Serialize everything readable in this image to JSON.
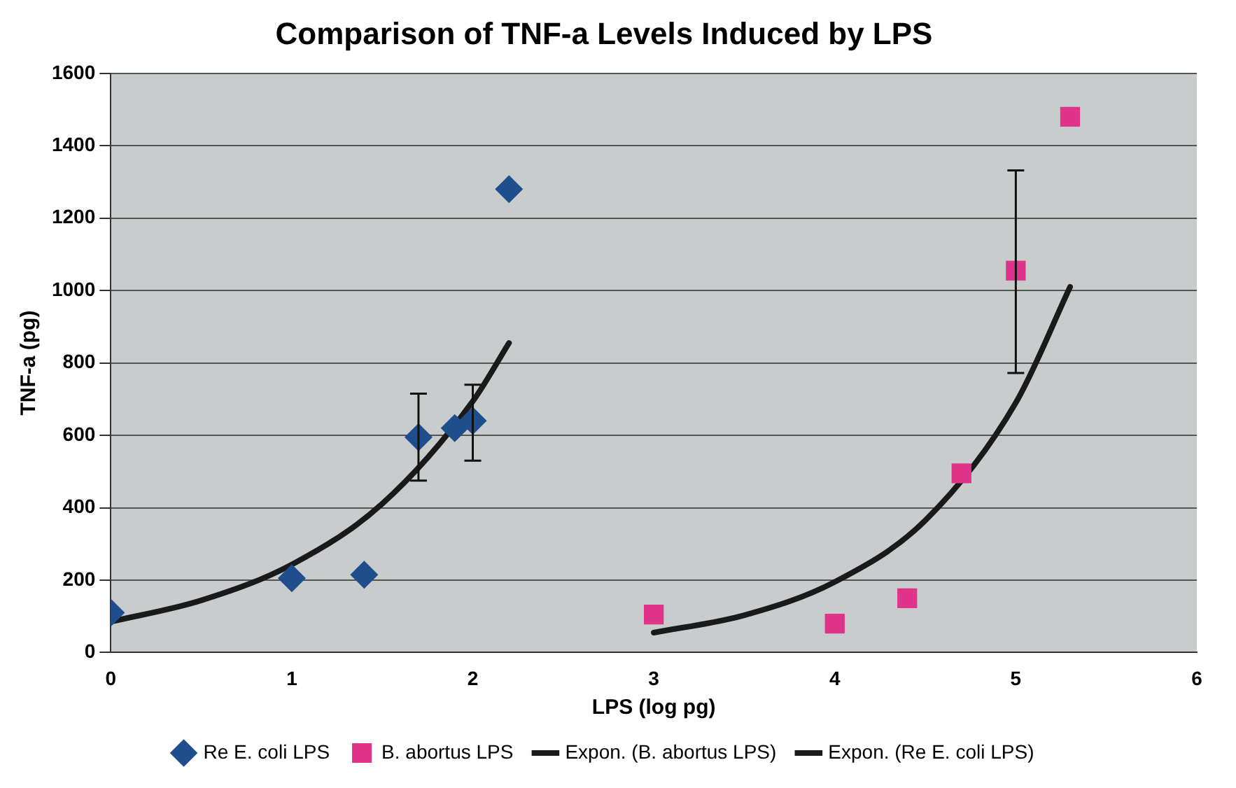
{
  "chart_data": {
    "type": "scatter",
    "title": "Comparison of TNF-a Levels Induced by LPS",
    "xlabel": "LPS (log pg)",
    "ylabel": "TNF-a (pg)",
    "xlim": [
      0,
      6
    ],
    "xticks": [
      0,
      1,
      2,
      3,
      4,
      5,
      6
    ],
    "ylim": [
      0,
      1600
    ],
    "yticks": [
      0,
      200,
      400,
      600,
      800,
      1000,
      1200,
      1400,
      1600
    ],
    "grid": "y",
    "legend": "bottom",
    "series": [
      {
        "name": "Re E. coli LPS",
        "type": "scatter",
        "marker": "diamond",
        "color": "#1f4e8c",
        "x": [
          0,
          1,
          1.4,
          1.7,
          1.9,
          2.0,
          2.2
        ],
        "values": [
          110,
          205,
          215,
          595,
          620,
          640,
          1280
        ],
        "errors": [
          null,
          null,
          null,
          [
            475,
            715
          ],
          null,
          [
            530,
            740
          ],
          null
        ]
      },
      {
        "name": "B. abortus LPS",
        "type": "scatter",
        "marker": "square",
        "color": "#e0338a",
        "x": [
          3,
          4,
          4.4,
          4.7,
          5,
          5.3
        ],
        "values": [
          105,
          80,
          150,
          495,
          1055,
          1480
        ],
        "errors": [
          null,
          null,
          null,
          null,
          [
            772,
            1332
          ],
          null
        ]
      },
      {
        "name": "Expon. (B. abortus LPS)",
        "type": "line",
        "marker": "none",
        "color": "#1a1a1a",
        "x": [
          3,
          3.5,
          4,
          4.5,
          5,
          5.3
        ],
        "values": [
          55,
          103,
          195,
          365,
          690,
          1010
        ]
      },
      {
        "name": "Expon. (Re E. coli LPS)",
        "type": "line",
        "marker": "none",
        "color": "#1a1a1a",
        "x": [
          0,
          0.5,
          1,
          1.5,
          2,
          2.2
        ],
        "values": [
          85,
          144,
          243,
          411,
          694,
          855
        ]
      }
    ]
  }
}
